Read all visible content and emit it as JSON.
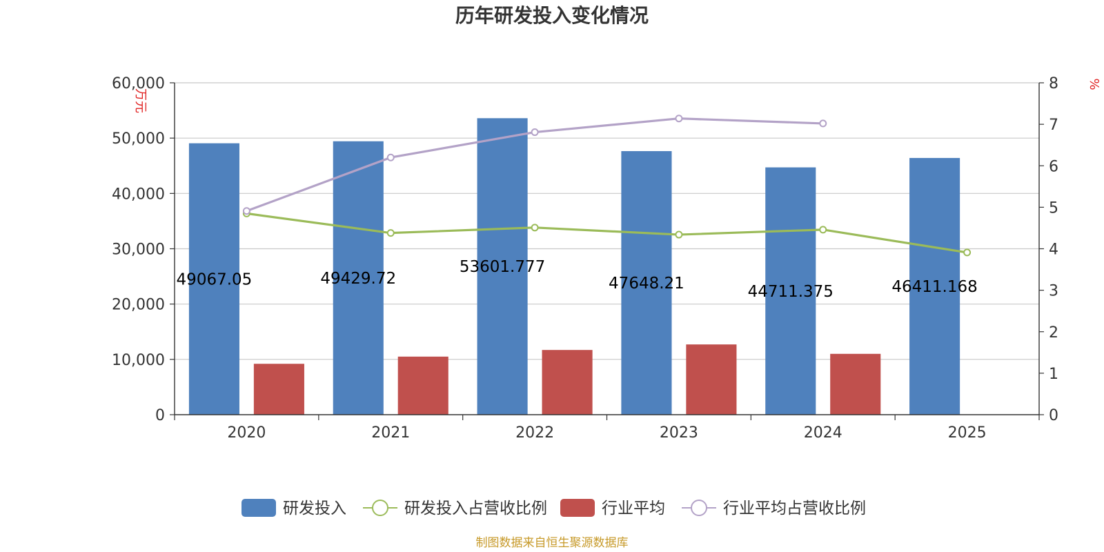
{
  "chart_data": {
    "type": "bar",
    "title": "历年研发投入变化情况",
    "categories": [
      "2020",
      "2021",
      "2022",
      "2023",
      "2024",
      "2025"
    ],
    "y_left": {
      "unit": "万元",
      "min": 0,
      "max": 60000,
      "ticks": [
        "0",
        "10,000",
        "20,000",
        "30,000",
        "40,000",
        "50,000",
        "60,000"
      ]
    },
    "y_right": {
      "unit": "%",
      "min": 0,
      "max": 8,
      "ticks": [
        "0",
        "1",
        "2",
        "3",
        "4",
        "5",
        "6",
        "7",
        "8"
      ]
    },
    "series": [
      {
        "name": "研发投入",
        "kind": "bar",
        "axis": "left",
        "color": "#4f81bd",
        "values": [
          49067.05,
          49429.72,
          53601.777,
          47648.21,
          44711.375,
          46411.168
        ],
        "labels": [
          "49067.05",
          "49429.72",
          "53601.777",
          "47648.21",
          "44711.375",
          "46411.168"
        ]
      },
      {
        "name": "研发投入占营收比例",
        "kind": "line",
        "axis": "right",
        "color": "#9bbb59",
        "values": [
          4.85,
          4.38,
          4.51,
          4.34,
          4.46,
          3.91
        ]
      },
      {
        "name": "行业平均",
        "kind": "bar",
        "axis": "left",
        "color": "#c0504d",
        "values": [
          9200,
          10500,
          11700,
          12700,
          11000,
          null
        ]
      },
      {
        "name": "行业平均占营收比例",
        "kind": "line",
        "axis": "right",
        "color": "#b3a2c7",
        "values": [
          4.91,
          6.2,
          6.81,
          7.14,
          7.02,
          null
        ]
      }
    ],
    "grid": true,
    "legend_position": "bottom",
    "source": "制图数据来自恒生聚源数据库"
  }
}
